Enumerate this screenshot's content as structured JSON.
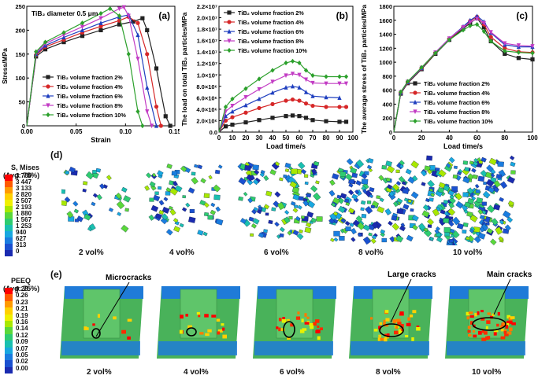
{
  "charts": [
    {
      "panel": "(a)",
      "type": "line",
      "title": "TiB₂ diameter 0.5 μm",
      "xlabel": "Strain",
      "ylabel": "Stress/MPa",
      "xlim": [
        0,
        0.16
      ],
      "ylim": [
        0,
        250
      ],
      "xticks": [
        "0.00",
        "0.05",
        "0.10",
        "0.15"
      ],
      "yticks": [
        "0",
        "50",
        "100",
        "150",
        "200",
        "250"
      ],
      "legend_position": "lower-left",
      "series": [
        {
          "name": "TiB₂ volume fraction 2%",
          "color": "#222222",
          "marker": "square",
          "x": [
            0,
            0.01,
            0.02,
            0.04,
            0.06,
            0.08,
            0.1,
            0.115,
            0.125,
            0.13,
            0.14,
            0.15,
            0.155
          ],
          "y": [
            0,
            145,
            160,
            175,
            188,
            200,
            212,
            218,
            225,
            200,
            120,
            20,
            0
          ]
        },
        {
          "name": "TiB₂ volume fraction 4%",
          "color": "#d62728",
          "marker": "circle",
          "x": [
            0,
            0.01,
            0.02,
            0.04,
            0.06,
            0.08,
            0.1,
            0.11,
            0.12,
            0.13,
            0.14,
            0.145
          ],
          "y": [
            0,
            148,
            165,
            180,
            195,
            208,
            220,
            228,
            215,
            150,
            40,
            0
          ]
        },
        {
          "name": "TiB₂ volume fraction 6%",
          "color": "#1f3fbf",
          "marker": "triangle",
          "x": [
            0,
            0.01,
            0.02,
            0.04,
            0.06,
            0.08,
            0.1,
            0.11,
            0.12,
            0.13,
            0.14
          ],
          "y": [
            0,
            150,
            168,
            185,
            200,
            215,
            228,
            232,
            190,
            80,
            0
          ]
        },
        {
          "name": "TiB₂ volume fraction 8%",
          "color": "#c23bc4",
          "marker": "triangle-down",
          "x": [
            0,
            0.01,
            0.02,
            0.04,
            0.06,
            0.08,
            0.1,
            0.105,
            0.11,
            0.12,
            0.13,
            0.135
          ],
          "y": [
            0,
            152,
            172,
            190,
            207,
            225,
            245,
            248,
            230,
            140,
            30,
            0
          ]
        },
        {
          "name": "TiB₂ volume fraction 10%",
          "color": "#2ca02c",
          "marker": "diamond",
          "x": [
            0,
            0.01,
            0.02,
            0.04,
            0.06,
            0.08,
            0.09,
            0.1,
            0.11,
            0.12,
            0.125
          ],
          "y": [
            0,
            155,
            175,
            195,
            215,
            235,
            245,
            230,
            150,
            30,
            0
          ]
        }
      ]
    },
    {
      "panel": "(b)",
      "type": "line",
      "xlabel": "Load time/s",
      "ylabel": "The load on total TiB₂ particles/MPa",
      "xlim": [
        0,
        100
      ],
      "ylim": [
        0,
        22000000
      ],
      "xticks": [
        "0",
        "10",
        "20",
        "30",
        "40",
        "50",
        "60",
        "70",
        "80",
        "90",
        "100"
      ],
      "yticks": [
        "0.0",
        "2.0×10⁶",
        "4.0×10⁶",
        "6.0×10⁶",
        "8.0×10⁶",
        "1.0×10⁷",
        "1.2×10⁷",
        "1.4×10⁷",
        "1.6×10⁷",
        "1.8×10⁷",
        "2.0×10⁷",
        "2.2×10⁷"
      ],
      "legend_position": "top-left",
      "series": [
        {
          "name": "TiB₂ volume fraction 2%",
          "color": "#222222",
          "marker": "square",
          "x": [
            0,
            5,
            10,
            20,
            30,
            40,
            50,
            55,
            60,
            65,
            70,
            80,
            90,
            95
          ],
          "y": [
            0,
            1000000,
            1300000,
            1700000,
            2100000,
            2500000,
            2800000,
            2900000,
            2800000,
            2500000,
            2100000,
            1900000,
            1800000,
            1800000
          ]
        },
        {
          "name": "TiB₂ volume fraction 4%",
          "color": "#d62728",
          "marker": "circle",
          "x": [
            0,
            5,
            10,
            20,
            30,
            40,
            50,
            55,
            60,
            65,
            70,
            80,
            90,
            95
          ],
          "y": [
            0,
            2000000,
            2600000,
            3400000,
            4200000,
            4900000,
            5500000,
            5700000,
            5500000,
            5000000,
            4600000,
            4400000,
            4400000,
            4400000
          ]
        },
        {
          "name": "TiB₂ volume fraction 6%",
          "color": "#1f3fbf",
          "marker": "triangle",
          "x": [
            0,
            5,
            10,
            20,
            30,
            40,
            50,
            55,
            60,
            65,
            70,
            80,
            90
          ],
          "y": [
            0,
            2800000,
            3600000,
            4700000,
            5800000,
            6900000,
            7800000,
            8000000,
            7800000,
            7000000,
            6300000,
            6100000,
            6000000
          ]
        },
        {
          "name": "TiB₂ volume fraction 8%",
          "color": "#c23bc4",
          "marker": "triangle-down",
          "x": [
            0,
            5,
            10,
            20,
            30,
            40,
            50,
            55,
            60,
            65,
            70,
            80,
            90,
            95
          ],
          "y": [
            0,
            3600000,
            4600000,
            6100000,
            7500000,
            8800000,
            9900000,
            10200000,
            10000000,
            9200000,
            8600000,
            8500000,
            8500000,
            8500000
          ]
        },
        {
          "name": "TiB₂ volume fraction 10%",
          "color": "#2ca02c",
          "marker": "diamond",
          "x": [
            0,
            5,
            10,
            20,
            30,
            40,
            50,
            55,
            60,
            65,
            70,
            80,
            90,
            95
          ],
          "y": [
            0,
            4400000,
            5800000,
            7600000,
            9300000,
            10800000,
            12100000,
            12400000,
            12100000,
            10800000,
            9900000,
            9700000,
            9700000,
            9700000
          ]
        }
      ]
    },
    {
      "panel": "(c)",
      "type": "line",
      "xlabel": "Load time/s",
      "ylabel": "The average stress of TiB₂ particles/MPa",
      "xlim": [
        0,
        100
      ],
      "ylim": [
        0,
        1800
      ],
      "xticks": [
        "0",
        "20",
        "40",
        "60",
        "80",
        "100"
      ],
      "yticks": [
        "0",
        "200",
        "400",
        "600",
        "800",
        "1000",
        "1200",
        "1400",
        "1600",
        "1800"
      ],
      "legend_position": "lower-right",
      "series": [
        {
          "name": "TiB₂ volume fraction 2%",
          "color": "#222222",
          "marker": "square",
          "x": [
            0,
            5,
            10,
            20,
            30,
            40,
            50,
            55,
            60,
            65,
            70,
            80,
            90,
            100
          ],
          "y": [
            0,
            550,
            700,
            900,
            1120,
            1320,
            1480,
            1560,
            1630,
            1500,
            1300,
            1120,
            1060,
            1040
          ]
        },
        {
          "name": "TiB₂ volume fraction 4%",
          "color": "#d62728",
          "marker": "circle",
          "x": [
            0,
            5,
            10,
            20,
            30,
            40,
            50,
            55,
            60,
            65,
            70,
            80,
            90,
            100
          ],
          "y": [
            0,
            560,
            710,
            910,
            1130,
            1330,
            1500,
            1590,
            1650,
            1540,
            1360,
            1200,
            1150,
            1140
          ]
        },
        {
          "name": "TiB₂ volume fraction 6%",
          "color": "#1f3fbf",
          "marker": "triangle",
          "x": [
            0,
            5,
            10,
            20,
            30,
            40,
            50,
            55,
            60,
            65,
            70,
            80,
            90,
            100
          ],
          "y": [
            0,
            565,
            715,
            915,
            1140,
            1340,
            1510,
            1600,
            1660,
            1580,
            1420,
            1250,
            1220,
            1220
          ]
        },
        {
          "name": "TiB₂ volume fraction 8%",
          "color": "#c23bc4",
          "marker": "triangle-down",
          "x": [
            0,
            5,
            10,
            20,
            30,
            40,
            50,
            55,
            60,
            65,
            70,
            80,
            90,
            100
          ],
          "y": [
            0,
            570,
            720,
            920,
            1140,
            1340,
            1500,
            1570,
            1620,
            1560,
            1430,
            1270,
            1240,
            1230
          ]
        },
        {
          "name": "TiB₂ volume fraction 10%",
          "color": "#2ca02c",
          "marker": "diamond",
          "x": [
            0,
            5,
            10,
            20,
            30,
            40,
            50,
            55,
            60,
            65,
            70,
            80,
            90,
            100
          ],
          "y": [
            0,
            575,
            725,
            925,
            1130,
            1320,
            1460,
            1520,
            1540,
            1440,
            1300,
            1160,
            1140,
            1130
          ]
        }
      ]
    }
  ],
  "mises": {
    "panel": "(d)",
    "legend_title": "S, Mises\n(Avg: 75%)",
    "scale": [
      "3 760",
      "3 447",
      "3 133",
      "2 820",
      "2 507",
      "2 193",
      "1 880",
      "1 567",
      "1 253",
      "940",
      "627",
      "313",
      "0"
    ],
    "captions": [
      "2 vol%",
      "4 vol%",
      "6 vol%",
      "8 vol%",
      "10 vol%"
    ],
    "particle_counts": [
      40,
      75,
      120,
      170,
      220
    ]
  },
  "peeq": {
    "panel": "(e)",
    "legend_title": "PEEQ\n(Avg: 75%)",
    "scale": [
      "0.28",
      "0.26",
      "0.23",
      "0.21",
      "0.19",
      "0.16",
      "0.14",
      "0.12",
      "0.09",
      "0.07",
      "0.05",
      "0.02",
      "0.00"
    ],
    "captions": [
      "2 vol%",
      "4 vol%",
      "6 vol%",
      "8 vol%",
      "10 vol%"
    ],
    "annotations": [
      {
        "text": "Microcracks",
        "panel": 0
      },
      {
        "text": "Large cracks",
        "panel": 3
      },
      {
        "text": "Main cracks",
        "panel": 4
      }
    ]
  },
  "colors": {
    "contour": [
      "#ff0000",
      "#ff5a00",
      "#ff9a00",
      "#ffd000",
      "#f0f000",
      "#a8e800",
      "#5ad83a",
      "#2ecc70",
      "#1ac0b0",
      "#18a8e0",
      "#1a7de0",
      "#1a50d0",
      "#1a2ab0"
    ]
  }
}
